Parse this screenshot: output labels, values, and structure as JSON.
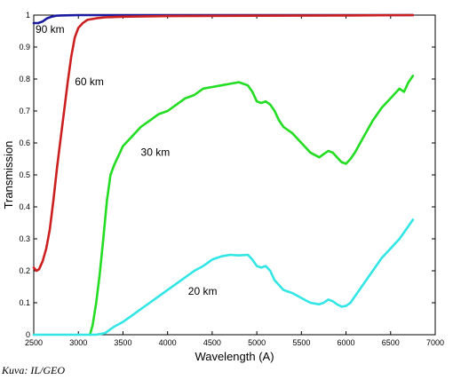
{
  "chart_data": {
    "type": "line",
    "title": "",
    "xlabel": "Wavelength (A)",
    "ylabel": "Transmission",
    "xlim": [
      2500,
      7000
    ],
    "ylim": [
      0,
      1
    ],
    "xticks": [
      2500,
      3000,
      3500,
      4000,
      4500,
      5000,
      5500,
      6000,
      6500,
      7000
    ],
    "yticks": [
      0,
      0.1,
      0.2,
      0.3,
      0.4,
      0.5,
      0.6,
      0.7,
      0.8,
      0.9,
      1
    ],
    "yticklabels": [
      "0",
      "0.1",
      "0.2",
      "0.3",
      "0.4",
      "0.5",
      "0.6",
      "0.7",
      "0.8",
      "0.9",
      "1"
    ],
    "grid": false,
    "legend": "none",
    "series": [
      {
        "label": "90 km",
        "label_at": [
          2520,
          0.945
        ],
        "color": "#1a1aa0",
        "x": [
          2500,
          2550,
          2600,
          2650,
          2700,
          2750,
          2800,
          3000,
          3500,
          4000,
          5000,
          6000,
          6750
        ],
        "y": [
          0.975,
          0.975,
          0.98,
          0.99,
          0.995,
          0.998,
          0.999,
          1,
          1,
          1,
          1,
          1,
          1
        ]
      },
      {
        "label": "60 km",
        "label_at": [
          2960,
          0.78
        ],
        "color": "#cc1f1f",
        "x": [
          2500,
          2530,
          2560,
          2600,
          2640,
          2680,
          2720,
          2760,
          2800,
          2840,
          2880,
          2920,
          2960,
          3000,
          3050,
          3100,
          3200,
          3300,
          3500,
          4000,
          5000,
          6000,
          6750
        ],
        "y": [
          0.21,
          0.2,
          0.205,
          0.23,
          0.27,
          0.33,
          0.42,
          0.52,
          0.61,
          0.7,
          0.79,
          0.87,
          0.93,
          0.96,
          0.975,
          0.985,
          0.99,
          0.993,
          0.995,
          0.997,
          0.998,
          0.999,
          1
        ]
      },
      {
        "label": "30 km",
        "label_at": [
          3700,
          0.56
        ],
        "color": "#22dd22",
        "x": [
          3130,
          3160,
          3200,
          3240,
          3280,
          3320,
          3360,
          3400,
          3450,
          3500,
          3600,
          3700,
          3800,
          3900,
          4000,
          4100,
          4200,
          4300,
          4400,
          4500,
          4600,
          4700,
          4800,
          4900,
          4950,
          5000,
          5050,
          5100,
          5150,
          5200,
          5250,
          5300,
          5400,
          5500,
          5600,
          5700,
          5750,
          5800,
          5850,
          5900,
          5950,
          6000,
          6050,
          6100,
          6200,
          6300,
          6400,
          6500,
          6600,
          6650,
          6700,
          6750
        ],
        "y": [
          0,
          0.03,
          0.1,
          0.19,
          0.3,
          0.42,
          0.5,
          0.53,
          0.56,
          0.59,
          0.62,
          0.65,
          0.67,
          0.69,
          0.7,
          0.72,
          0.74,
          0.75,
          0.77,
          0.775,
          0.78,
          0.785,
          0.79,
          0.78,
          0.76,
          0.73,
          0.725,
          0.73,
          0.72,
          0.7,
          0.67,
          0.65,
          0.63,
          0.6,
          0.57,
          0.555,
          0.565,
          0.575,
          0.57,
          0.555,
          0.54,
          0.535,
          0.55,
          0.57,
          0.62,
          0.67,
          0.71,
          0.74,
          0.77,
          0.76,
          0.79,
          0.81
        ]
      },
      {
        "label": "20 km",
        "label_at": [
          4230,
          0.125
        ],
        "color": "#33e6e6",
        "x": [
          2500,
          3200,
          3300,
          3350,
          3400,
          3500,
          3600,
          3700,
          3800,
          3900,
          4000,
          4100,
          4200,
          4300,
          4400,
          4500,
          4600,
          4700,
          4800,
          4900,
          4950,
          5000,
          5050,
          5100,
          5150,
          5200,
          5300,
          5400,
          5500,
          5600,
          5700,
          5750,
          5800,
          5850,
          5900,
          5950,
          6000,
          6050,
          6100,
          6200,
          6300,
          6400,
          6500,
          6600,
          6700,
          6750
        ],
        "y": [
          0,
          0,
          0.005,
          0.015,
          0.025,
          0.04,
          0.06,
          0.08,
          0.1,
          0.12,
          0.14,
          0.16,
          0.18,
          0.2,
          0.215,
          0.235,
          0.245,
          0.25,
          0.248,
          0.25,
          0.235,
          0.215,
          0.21,
          0.215,
          0.2,
          0.17,
          0.14,
          0.13,
          0.115,
          0.1,
          0.095,
          0.1,
          0.11,
          0.105,
          0.095,
          0.088,
          0.09,
          0.1,
          0.12,
          0.16,
          0.2,
          0.24,
          0.27,
          0.3,
          0.34,
          0.36
        ]
      }
    ]
  },
  "credit": "Kuva: IL/GEO"
}
